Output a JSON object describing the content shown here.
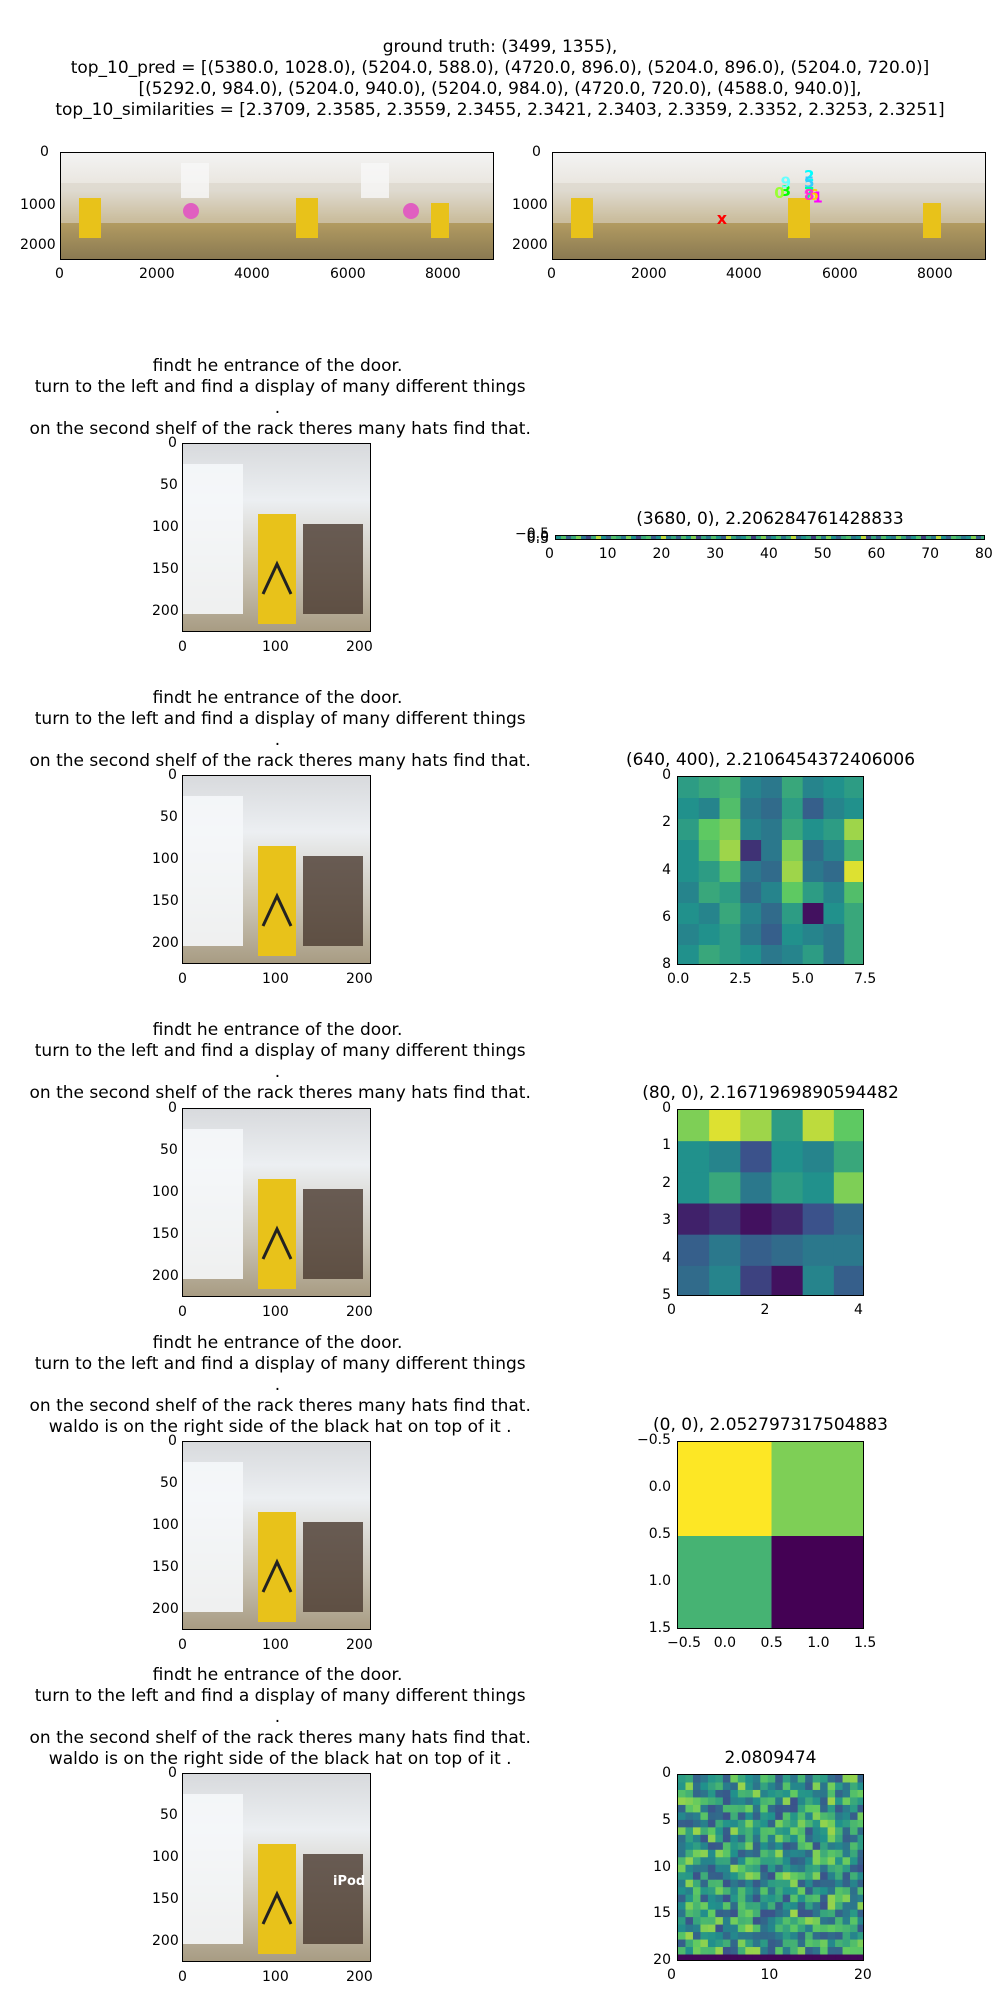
{
  "header": {
    "line1": "ground truth: (3499, 1355),",
    "line2": "top_10_pred = [(5380.0, 1028.0), (5204.0, 588.0), (4720.0, 896.0), (5204.0, 896.0), (5204.0, 720.0)]",
    "line3": "[(5292.0, 984.0), (5204.0, 940.0), (5204.0, 984.0), (4720.0, 720.0), (4588.0, 940.0)],",
    "line4": "top_10_similarities = [2.3709, 2.3585, 2.3559, 2.3455, 2.3421, 2.3403, 2.3359, 2.3352, 2.3253, 2.3251]"
  },
  "panorama": {
    "xticks": [
      "0",
      "2000",
      "4000",
      "6000",
      "8000"
    ],
    "yticks": [
      "0",
      "1000",
      "2000"
    ],
    "pred_labels": [
      "1",
      "2",
      "3",
      "4",
      "5",
      "6",
      "7",
      "8",
      "9",
      "0"
    ],
    "ground_truth_marker": "x"
  },
  "rows": [
    {
      "text": "findt he entrance of the door.\n turn to the left and find a display of many different things\n.\n on the second shelf of the rack theres many hats find that.",
      "title": "(3680, 0), 2.206284761428833",
      "view_yticks": [
        "0",
        "50",
        "100",
        "150",
        "200"
      ],
      "view_xticks": [
        "0",
        "100",
        "200"
      ],
      "hm_xticks": [
        "0",
        "10",
        "20",
        "30",
        "40",
        "50",
        "60",
        "70",
        "80"
      ],
      "hm_yticks": [
        "−0.5",
        "0.0",
        "0.5"
      ]
    },
    {
      "text": "findt he entrance of the door.\n turn to the left and find a display of many different things\n.\n on the second shelf of the rack theres many hats find that.",
      "title": "(640, 400), 2.2106454372406006",
      "view_yticks": [
        "0",
        "50",
        "100",
        "150",
        "200"
      ],
      "view_xticks": [
        "0",
        "100",
        "200"
      ],
      "hm_xticks": [
        "0.0",
        "2.5",
        "5.0",
        "7.5"
      ],
      "hm_yticks": [
        "0",
        "2",
        "4",
        "6",
        "8"
      ]
    },
    {
      "text": "findt he entrance of the door.\n turn to the left and find a display of many different things\n.\n on the second shelf of the rack theres many hats find that.",
      "title": "(80, 0), 2.1671969890594482",
      "view_yticks": [
        "0",
        "50",
        "100",
        "150",
        "200"
      ],
      "view_xticks": [
        "0",
        "100",
        "200"
      ],
      "hm_xticks": [
        "0",
        "2",
        "4"
      ],
      "hm_yticks": [
        "0",
        "1",
        "2",
        "3",
        "4",
        "5"
      ]
    },
    {
      "text": "findt he entrance of the door.\n turn to the left and find a display of many different things\n.\n on the second shelf of the rack theres many hats find that.\n waldo is on the right side of the black hat on top of it .",
      "title": "(0, 0), 2.052797317504883",
      "view_yticks": [
        "0",
        "50",
        "100",
        "150",
        "200"
      ],
      "view_xticks": [
        "0",
        "100",
        "200"
      ],
      "hm_xticks": [
        "−0.5",
        "0.0",
        "0.5",
        "1.0",
        "1.5"
      ],
      "hm_yticks": [
        "−0.5",
        "0.0",
        "0.5",
        "1.0",
        "1.5"
      ]
    },
    {
      "text": "findt he entrance of the door.\n turn to the left and find a display of many different things\n.\n on the second shelf of the rack theres many hats find that.\n waldo is on the right side of the black hat on top of it .",
      "title": "2.0809474",
      "view_yticks": [
        "0",
        "50",
        "100",
        "150",
        "200"
      ],
      "view_xticks": [
        "0",
        "100",
        "200"
      ],
      "hm_xticks": [
        "0",
        "10",
        "20"
      ],
      "hm_yticks": [
        "0",
        "5",
        "10",
        "15",
        "20"
      ],
      "overlay_label": "iPod"
    }
  ],
  "chart_data": [
    {
      "type": "scatter",
      "ground_truth": [
        3499,
        1355
      ],
      "predictions": [
        [
          5380,
          1028
        ],
        [
          5204,
          588
        ],
        [
          4720,
          896
        ],
        [
          5204,
          896
        ],
        [
          5204,
          720
        ],
        [
          5292,
          984
        ],
        [
          5204,
          940
        ],
        [
          5204,
          984
        ],
        [
          4720,
          720
        ],
        [
          4588,
          940
        ]
      ],
      "similarities": [
        2.3709,
        2.3585,
        2.3559,
        2.3455,
        2.3421,
        2.3403,
        2.3359,
        2.3352,
        2.3253,
        2.3251
      ],
      "xlim": [
        0,
        9000
      ],
      "ylim": [
        2250,
        0
      ]
    },
    {
      "type": "heatmap",
      "title": "(3680, 0), 2.206284761428833",
      "rows": 1,
      "cols": 86,
      "values": [
        [
          0.5,
          0.7,
          0.3,
          0.6,
          0.8,
          0.4,
          0.2,
          0.6,
          0.9,
          0.5,
          0.3,
          0.7,
          0.6,
          0.4,
          0.8,
          0.5,
          0.2,
          0.6,
          0.7,
          0.3,
          0.5,
          0.9,
          0.4,
          0.6,
          0.3,
          0.7,
          0.5,
          0.8,
          0.2,
          0.6,
          0.4,
          0.7,
          0.5,
          0.3,
          0.9,
          0.6,
          0.4,
          0.5,
          0.7,
          0.2,
          0.6,
          0.8,
          0.3,
          0.5,
          0.7,
          0.4,
          0.6,
          0.9,
          0.3,
          0.5,
          0.6,
          0.2,
          0.7,
          0.4,
          0.8,
          0.5,
          0.3,
          0.6,
          0.7,
          0.4,
          0.5,
          0.9,
          0.2,
          0.6,
          0.3,
          0.7,
          0.5,
          0.4,
          0.8,
          0.6,
          0.3,
          0.5,
          0.7,
          0.2,
          0.6,
          0.4,
          0.9,
          0.5,
          0.3,
          0.7,
          0.6,
          0.4,
          0.5,
          0.8,
          0.3,
          0.6
        ]
      ]
    },
    {
      "type": "heatmap",
      "title": "(640, 400), 2.2106454372406006",
      "rows": 9,
      "cols": 9,
      "values": [
        [
          0.55,
          0.6,
          0.65,
          0.45,
          0.4,
          0.6,
          0.45,
          0.5,
          0.55
        ],
        [
          0.5,
          0.45,
          0.7,
          0.4,
          0.35,
          0.55,
          0.3,
          0.45,
          0.5
        ],
        [
          0.55,
          0.75,
          0.8,
          0.45,
          0.4,
          0.6,
          0.5,
          0.55,
          0.85
        ],
        [
          0.5,
          0.7,
          0.85,
          0.15,
          0.4,
          0.8,
          0.35,
          0.45,
          0.65
        ],
        [
          0.5,
          0.55,
          0.7,
          0.4,
          0.35,
          0.85,
          0.4,
          0.35,
          0.95
        ],
        [
          0.45,
          0.6,
          0.55,
          0.35,
          0.45,
          0.75,
          0.55,
          0.45,
          0.7
        ],
        [
          0.5,
          0.45,
          0.6,
          0.45,
          0.35,
          0.55,
          0.05,
          0.5,
          0.6
        ],
        [
          0.45,
          0.5,
          0.55,
          0.4,
          0.3,
          0.5,
          0.45,
          0.4,
          0.6
        ],
        [
          0.5,
          0.6,
          0.55,
          0.5,
          0.4,
          0.45,
          0.55,
          0.4,
          0.6
        ]
      ]
    },
    {
      "type": "heatmap",
      "title": "(80, 0), 2.1671969890594482",
      "rows": 6,
      "cols": 6,
      "values": [
        [
          0.8,
          0.95,
          0.85,
          0.55,
          0.9,
          0.75
        ],
        [
          0.5,
          0.45,
          0.25,
          0.5,
          0.45,
          0.6
        ],
        [
          0.5,
          0.6,
          0.4,
          0.55,
          0.5,
          0.8
        ],
        [
          0.1,
          0.15,
          0.05,
          0.12,
          0.25,
          0.35
        ],
        [
          0.3,
          0.4,
          0.3,
          0.35,
          0.4,
          0.4
        ],
        [
          0.35,
          0.45,
          0.2,
          0.05,
          0.45,
          0.3
        ]
      ]
    },
    {
      "type": "heatmap",
      "title": "(0, 0), 2.052797317504883",
      "rows": 2,
      "cols": 2,
      "values": [
        [
          1.0,
          0.8
        ],
        [
          0.65,
          0.0
        ]
      ]
    },
    {
      "type": "heatmap",
      "title": "2.0809474",
      "rows": 25,
      "cols": 25
    }
  ]
}
